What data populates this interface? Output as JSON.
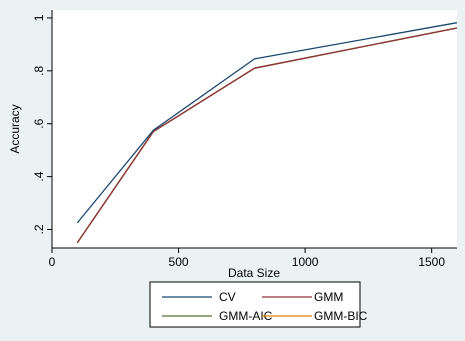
{
  "chart_data": {
    "type": "line",
    "title": "",
    "xlabel": "Data Size",
    "ylabel": "Accuracy",
    "xlim": [
      0,
      1600
    ],
    "ylim": [
      0.13,
      1.03
    ],
    "xticks": [
      0,
      500,
      1000,
      1500
    ],
    "xtick_labels": [
      "0",
      "500",
      "1000",
      "1500"
    ],
    "yticks": [
      0.2,
      0.4,
      0.6,
      0.8,
      1.0
    ],
    "ytick_labels": [
      ".2",
      ".4",
      ".6",
      ".8",
      "1"
    ],
    "grid": false,
    "legend_position": "bottom",
    "series": [
      {
        "name": "CV",
        "color": "#1a476f",
        "x": [
          100,
          400,
          800,
          1600
        ],
        "y": [
          0.225,
          0.575,
          0.845,
          0.982
        ]
      },
      {
        "name": "GMM",
        "color": "#90353b",
        "x": [
          100,
          400,
          800,
          1600
        ],
        "y": [
          0.15,
          0.57,
          0.81,
          0.962
        ]
      },
      {
        "name": "GMM-AIC",
        "color": "#55752f",
        "x": [
          100,
          400,
          800,
          1600
        ],
        "y": [
          0.15,
          0.57,
          0.81,
          0.962
        ]
      },
      {
        "name": "GMM-BIC",
        "color": "#e37e00",
        "x": [
          100,
          400,
          800,
          1600
        ],
        "y": [
          0.15,
          0.57,
          0.81,
          0.962
        ]
      }
    ]
  }
}
